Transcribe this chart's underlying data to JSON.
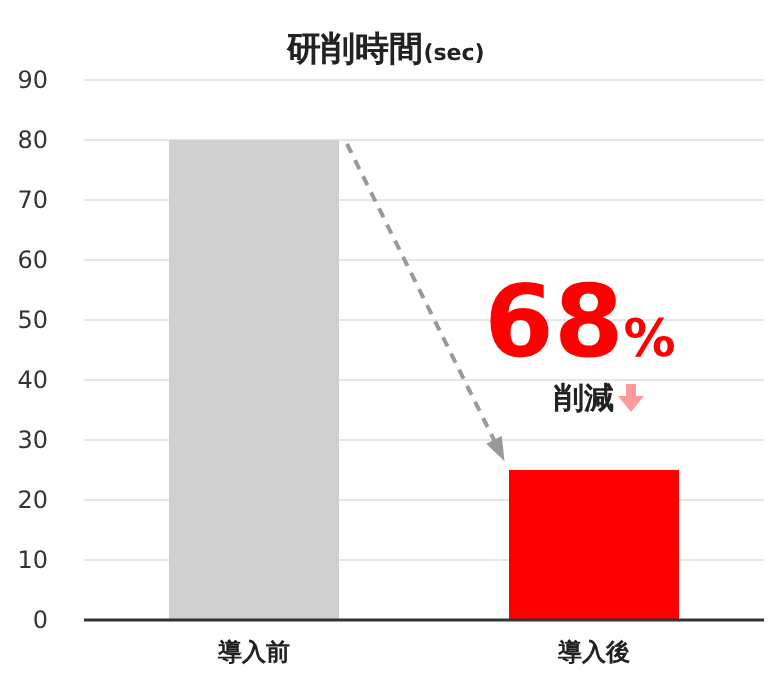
{
  "chart_data": {
    "type": "bar",
    "title": "研削時間",
    "subtitle": "(sec)",
    "categories": [
      "導入前",
      "導入後"
    ],
    "values": [
      80,
      25
    ],
    "colors": [
      "#d0d0d0",
      "#ff0000"
    ],
    "ylim": [
      0,
      90
    ],
    "yticks": [
      0,
      10,
      20,
      30,
      40,
      50,
      60,
      70,
      80,
      90
    ],
    "grid": "y",
    "annotations": [
      "68%",
      "削減"
    ]
  }
}
